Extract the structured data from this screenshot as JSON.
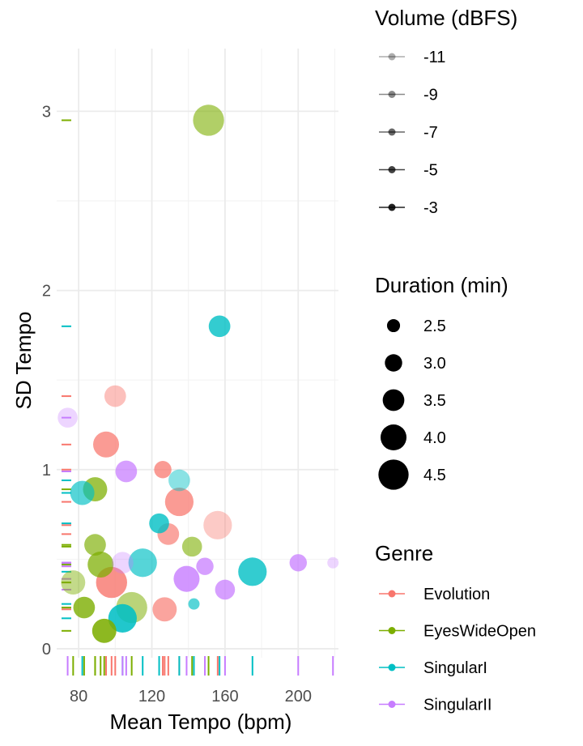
{
  "chart_data": {
    "type": "scatter",
    "xlabel": "Mean Tempo (bpm)",
    "ylabel": "SD Tempo",
    "xlim": [
      68,
      222
    ],
    "ylim": [
      -0.05,
      3.35
    ],
    "x_ticks": [
      80,
      120,
      160,
      200
    ],
    "y_ticks": [
      0,
      1,
      2,
      3
    ],
    "grid": true,
    "rug": true,
    "legend_position": "right",
    "volume_legend": {
      "title": "Volume (dBFS)",
      "entries": [
        {
          "label": "-11",
          "value": -11
        },
        {
          "label": "-9",
          "value": -9
        },
        {
          "label": "-7",
          "value": -7
        },
        {
          "label": "-5",
          "value": -5
        },
        {
          "label": "-3",
          "value": -3
        }
      ]
    },
    "duration_legend": {
      "title": "Duration (min)",
      "entries": [
        {
          "label": "2.5",
          "value": 2.5
        },
        {
          "label": "3.0",
          "value": 3.0
        },
        {
          "label": "3.5",
          "value": 3.5
        },
        {
          "label": "4.0",
          "value": 4.0
        },
        {
          "label": "4.5",
          "value": 4.5
        }
      ]
    },
    "genre_legend": {
      "title": "Genre",
      "entries": [
        {
          "label": "Evolution",
          "color": "#F8766D"
        },
        {
          "label": "EyesWideOpen",
          "color": "#7CAE00"
        },
        {
          "label": "SingularI",
          "color": "#00BFC4"
        },
        {
          "label": "SingularII",
          "color": "#C77CFF"
        }
      ]
    },
    "series": [
      {
        "name": "Evolution",
        "color": "#F8766D",
        "points": [
          {
            "x": 100,
            "y": 1.41,
            "dur": 3.5,
            "vol": -9
          },
          {
            "x": 95,
            "y": 1.14,
            "dur": 4.0,
            "vol": -5
          },
          {
            "x": 126,
            "y": 1.0,
            "dur": 3.0,
            "vol": -5
          },
          {
            "x": 135,
            "y": 0.82,
            "dur": 4.3,
            "vol": -5
          },
          {
            "x": 129,
            "y": 0.64,
            "dur": 3.5,
            "vol": -6
          },
          {
            "x": 156,
            "y": 0.69,
            "dur": 4.3,
            "vol": -10
          },
          {
            "x": 98,
            "y": 0.37,
            "dur": 4.6,
            "vol": -4
          },
          {
            "x": 127,
            "y": 0.22,
            "dur": 3.8,
            "vol": -6
          }
        ]
      },
      {
        "name": "EyesWideOpen",
        "color": "#7CAE00",
        "points": [
          {
            "x": 151,
            "y": 2.95,
            "dur": 4.6,
            "vol": -7
          },
          {
            "x": 89,
            "y": 0.89,
            "dur": 3.8,
            "vol": -5
          },
          {
            "x": 89,
            "y": 0.58,
            "dur": 3.5,
            "vol": -6
          },
          {
            "x": 142,
            "y": 0.57,
            "dur": 3.3,
            "vol": -7
          },
          {
            "x": 92,
            "y": 0.47,
            "dur": 4.0,
            "vol": -5
          },
          {
            "x": 77,
            "y": 0.37,
            "dur": 3.8,
            "vol": -9
          },
          {
            "x": 83,
            "y": 0.23,
            "dur": 3.5,
            "vol": -4
          },
          {
            "x": 109,
            "y": 0.23,
            "dur": 4.6,
            "vol": -8
          },
          {
            "x": 94,
            "y": 0.1,
            "dur": 3.8,
            "vol": -3
          }
        ]
      },
      {
        "name": "SingularI",
        "color": "#00BFC4",
        "points": [
          {
            "x": 157,
            "y": 1.8,
            "dur": 3.5,
            "vol": -4
          },
          {
            "x": 82,
            "y": 0.87,
            "dur": 3.8,
            "vol": -6
          },
          {
            "x": 135,
            "y": 0.94,
            "dur": 3.5,
            "vol": -9
          },
          {
            "x": 124,
            "y": 0.7,
            "dur": 3.3,
            "vol": -4
          },
          {
            "x": 115,
            "y": 0.48,
            "dur": 4.3,
            "vol": -6
          },
          {
            "x": 175,
            "y": 0.43,
            "dur": 4.3,
            "vol": -4
          },
          {
            "x": 104,
            "y": 0.17,
            "dur": 4.3,
            "vol": -3
          },
          {
            "x": 143,
            "y": 0.25,
            "dur": 2.3,
            "vol": -6
          }
        ]
      },
      {
        "name": "SingularII",
        "color": "#C77CFF",
        "points": [
          {
            "x": 74,
            "y": 1.29,
            "dur": 3.3,
            "vol": -11
          },
          {
            "x": 106,
            "y": 0.99,
            "dur": 3.5,
            "vol": -5
          },
          {
            "x": 104,
            "y": 0.48,
            "dur": 3.5,
            "vol": -11
          },
          {
            "x": 149,
            "y": 0.46,
            "dur": 3.0,
            "vol": -5
          },
          {
            "x": 139,
            "y": 0.39,
            "dur": 4.0,
            "vol": -4
          },
          {
            "x": 160,
            "y": 0.33,
            "dur": 3.3,
            "vol": -5
          },
          {
            "x": 200,
            "y": 0.48,
            "dur": 3.0,
            "vol": -5
          },
          {
            "x": 219,
            "y": 0.48,
            "dur": 2.3,
            "vol": -11
          }
        ]
      }
    ]
  }
}
